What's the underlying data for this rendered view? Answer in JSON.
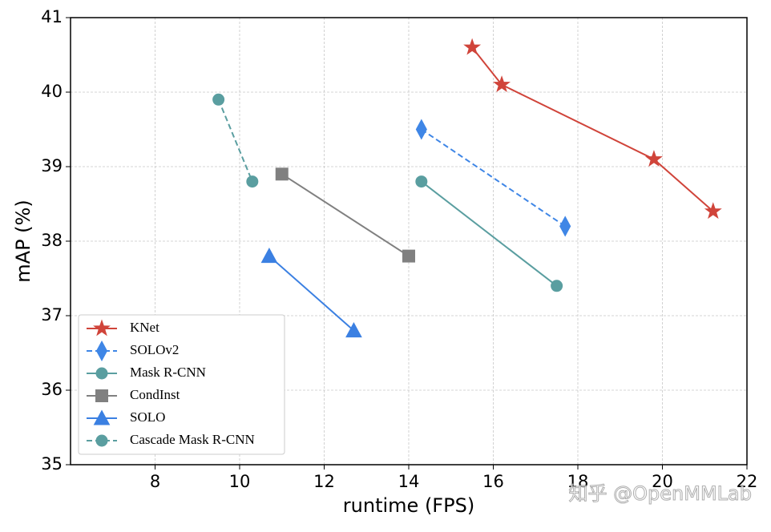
{
  "chart_data": {
    "type": "line",
    "xlabel": "runtime (FPS)",
    "ylabel": "mAP (%)",
    "xlim": [
      6,
      22
    ],
    "xticks": [
      8,
      10,
      12,
      14,
      16,
      18,
      20,
      22
    ],
    "ylim": [
      35,
      41
    ],
    "yticks": [
      35,
      36,
      37,
      38,
      39,
      40,
      41
    ],
    "grid": true,
    "legend": "lower left",
    "watermark": "知乎 @OpenMMLab",
    "series": [
      {
        "name": "KNet",
        "color": "#d0443a",
        "marker": "star",
        "linestyle": "solid",
        "x": [
          15.5,
          16.2,
          19.8,
          21.2
        ],
        "values": [
          40.6,
          40.1,
          39.1,
          38.4
        ]
      },
      {
        "name": "SOLOv2",
        "color": "#3f86e6",
        "marker": "diamond",
        "linestyle": "dashed",
        "x": [
          14.3,
          17.7
        ],
        "values": [
          39.5,
          38.2
        ]
      },
      {
        "name": "Mask R-CNN",
        "color": "#5a9ea0",
        "marker": "circle",
        "linestyle": "solid",
        "x": [
          14.3,
          17.5
        ],
        "values": [
          38.8,
          37.4
        ]
      },
      {
        "name": "CondInst",
        "color": "#808080",
        "marker": "square",
        "linestyle": "solid",
        "x": [
          11,
          14
        ],
        "values": [
          38.9,
          37.8
        ]
      },
      {
        "name": "SOLO",
        "color": "#3b80e2",
        "marker": "triangle",
        "linestyle": "solid",
        "x": [
          10.7,
          12.7
        ],
        "values": [
          37.8,
          36.8
        ]
      },
      {
        "name": "Cascade Mask R-CNN",
        "color": "#5a9ea0",
        "marker": "circle",
        "linestyle": "dashed",
        "x": [
          9.5,
          10.3
        ],
        "values": [
          39.9,
          38.8
        ]
      }
    ]
  }
}
